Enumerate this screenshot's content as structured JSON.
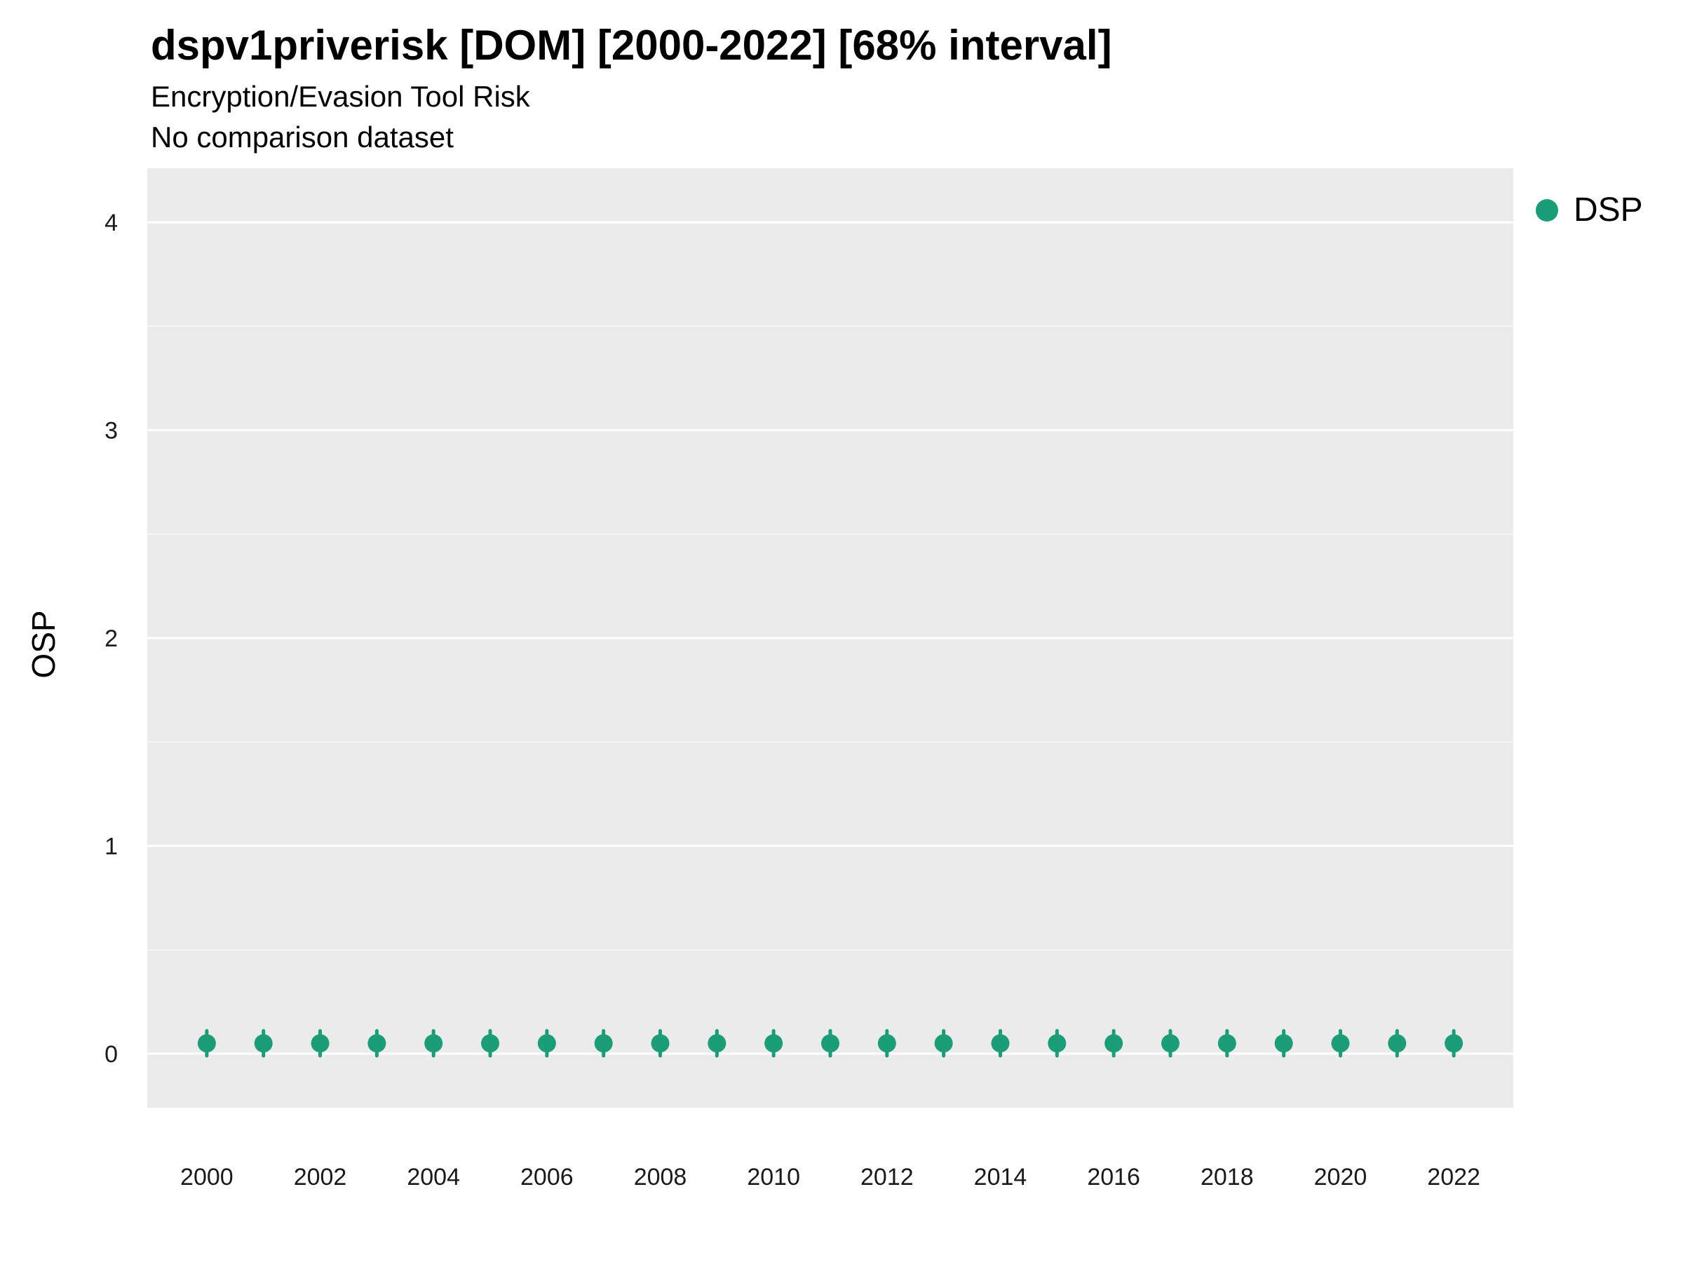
{
  "title": "dspv1priverisk [DOM] [2000-2022] [68% interval]",
  "subtitle": "Encryption/Evasion Tool Risk",
  "note": "No comparison dataset",
  "ylabel": "OSP",
  "legend": {
    "label": "DSP",
    "color": "#1b9e77"
  },
  "chart_data": {
    "type": "scatter",
    "title": "dspv1priverisk [DOM] [2000-2022] [68% interval]",
    "subtitle": "Encryption/Evasion Tool Risk",
    "note": "No comparison dataset",
    "xlabel": "",
    "ylabel": "OSP",
    "series": [
      {
        "name": "DSP",
        "x": [
          2000,
          2001,
          2002,
          2003,
          2004,
          2005,
          2006,
          2007,
          2008,
          2009,
          2010,
          2011,
          2012,
          2013,
          2014,
          2015,
          2016,
          2017,
          2018,
          2019,
          2020,
          2021,
          2022
        ],
        "values": [
          0.05,
          0.05,
          0.05,
          0.05,
          0.05,
          0.05,
          0.05,
          0.05,
          0.05,
          0.05,
          0.05,
          0.05,
          0.05,
          0.05,
          0.05,
          0.05,
          0.05,
          0.05,
          0.05,
          0.05,
          0.05,
          0.05,
          0.05
        ],
        "interval_low": [
          -0.01,
          -0.01,
          -0.01,
          -0.01,
          -0.01,
          -0.01,
          -0.01,
          -0.01,
          -0.01,
          -0.01,
          -0.01,
          -0.01,
          -0.01,
          -0.01,
          -0.01,
          -0.01,
          -0.01,
          -0.01,
          -0.01,
          -0.01,
          -0.01,
          -0.01,
          -0.01
        ],
        "interval_high": [
          0.11,
          0.11,
          0.11,
          0.11,
          0.11,
          0.11,
          0.11,
          0.11,
          0.11,
          0.11,
          0.11,
          0.11,
          0.11,
          0.11,
          0.11,
          0.11,
          0.11,
          0.11,
          0.11,
          0.11,
          0.11,
          0.11,
          0.11
        ],
        "interval_level": "68%"
      }
    ],
    "xticks": [
      2000,
      2002,
      2004,
      2006,
      2008,
      2010,
      2012,
      2014,
      2016,
      2018,
      2020,
      2022
    ],
    "yticks": [
      0,
      1,
      2,
      3,
      4
    ],
    "yticks_minor": [
      0.5,
      1.5,
      2.5,
      3.5
    ],
    "xlim": [
      1998.95,
      2023.05
    ],
    "ylim": [
      -0.26,
      4.26
    ],
    "grid": "horizontal white lines on gray panel",
    "legend_position": "right",
    "plot_bg": "#ebebeb",
    "grid_color": "#ffffff",
    "point_color": "#1b9e77",
    "tick_label_color": "#1a1a1a"
  }
}
